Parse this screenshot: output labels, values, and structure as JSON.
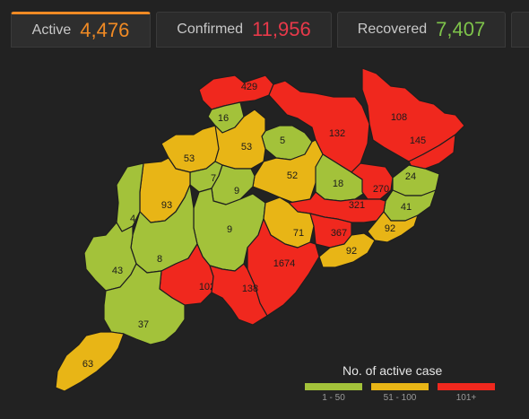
{
  "tabs": [
    {
      "label": "Active",
      "value": "4,476",
      "color": "#f08a24"
    },
    {
      "label": "Confirmed",
      "value": "11,956",
      "color": "#e8394a"
    },
    {
      "label": "Recovered",
      "value": "7,407",
      "color": "#7ec34a"
    }
  ],
  "legend": {
    "title": "No. of active case",
    "items": [
      {
        "label": "1 - 50",
        "color": "#a3c23a"
      },
      {
        "label": "51 - 100",
        "color": "#e8b516"
      },
      {
        "label": "101+",
        "color": "#f0281e"
      }
    ]
  },
  "districts": [
    {
      "value": "429",
      "color": "#f0281e"
    },
    {
      "value": "16",
      "color": "#a3c23a"
    },
    {
      "value": "132",
      "color": "#f0281e"
    },
    {
      "value": "108",
      "color": "#f0281e"
    },
    {
      "value": "145",
      "color": "#f0281e"
    },
    {
      "value": "5",
      "color": "#a3c23a"
    },
    {
      "value": "53",
      "color": "#e8b516"
    },
    {
      "value": "53",
      "color": "#e8b516"
    },
    {
      "value": "52",
      "color": "#e8b516"
    },
    {
      "value": "18",
      "color": "#a3c23a"
    },
    {
      "value": "270",
      "color": "#f0281e"
    },
    {
      "value": "24",
      "color": "#a3c23a"
    },
    {
      "value": "7",
      "color": "#a3c23a"
    },
    {
      "value": "9",
      "color": "#a3c23a"
    },
    {
      "value": "93",
      "color": "#e8b516"
    },
    {
      "value": "41",
      "color": "#a3c23a"
    },
    {
      "value": "321",
      "color": "#f0281e"
    },
    {
      "value": "4",
      "color": "#a3c23a"
    },
    {
      "value": "9",
      "color": "#a3c23a"
    },
    {
      "value": "71",
      "color": "#e8b516"
    },
    {
      "value": "367",
      "color": "#f0281e"
    },
    {
      "value": "92",
      "color": "#e8b516"
    },
    {
      "value": "92",
      "color": "#e8b516"
    },
    {
      "value": "8",
      "color": "#a3c23a"
    },
    {
      "value": "43",
      "color": "#a3c23a"
    },
    {
      "value": "1674",
      "color": "#f0281e"
    },
    {
      "value": "102",
      "color": "#f0281e"
    },
    {
      "value": "138",
      "color": "#f0281e"
    },
    {
      "value": "37",
      "color": "#a3c23a"
    },
    {
      "value": "63",
      "color": "#e8b516"
    }
  ]
}
